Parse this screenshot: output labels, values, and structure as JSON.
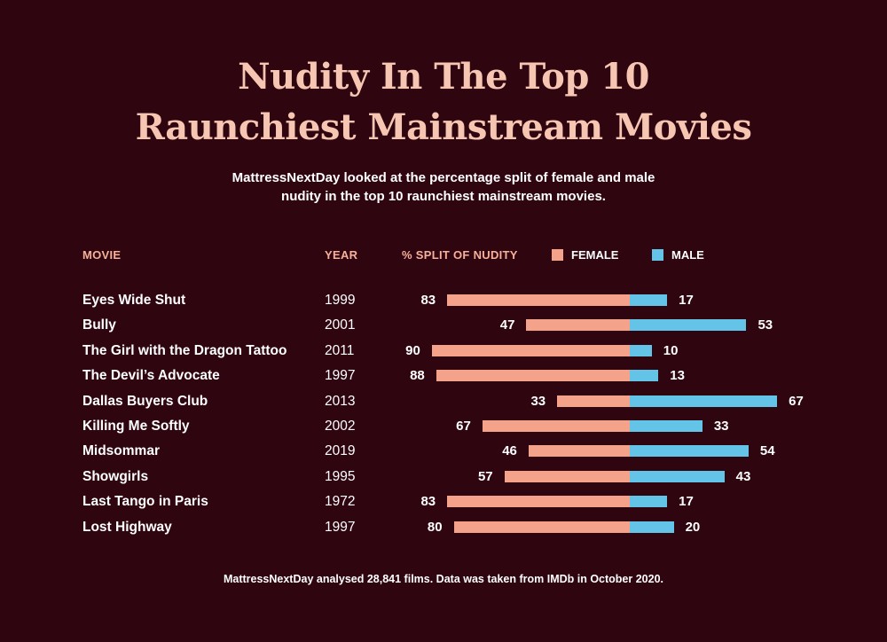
{
  "title": {
    "line1": "Nudity In The Top 10",
    "line2": "Raunchiest Mainstream Movies"
  },
  "subtitle": {
    "line1": "MattressNextDay looked at the percentage split of female and male",
    "line2": "nudity in the top 10 raunchiest mainstream movies."
  },
  "headers": {
    "movie": "MOVIE",
    "year": "YEAR",
    "split": "% SPLIT OF NUDITY"
  },
  "legend": {
    "female": "FEMALE",
    "male": "MALE"
  },
  "colors": {
    "background": "#2f0510",
    "title": "#f7c6b3",
    "header": "#f7b19a",
    "female": "#f4a38a",
    "male": "#63c4e8"
  },
  "footer": "MattressNextDay analysed 28,841 films. Data was taken from IMDb in October 2020.",
  "chart_data": {
    "type": "bar",
    "orientation": "horizontal-diverging",
    "categories": [
      "Eyes Wide Shut",
      "Bully",
      "The Girl with the Dragon Tattoo",
      "The Devil’s Advocate",
      "Dallas Buyers Club",
      "Killing Me Softly",
      "Midsommar",
      "Showgirls",
      "Last Tango in Paris",
      "Lost Highway"
    ],
    "years": [
      "1999",
      "2001",
      "2011",
      "1997",
      "2013",
      "2002",
      "2019",
      "1995",
      "1972",
      "1997"
    ],
    "series": [
      {
        "name": "FEMALE",
        "values": [
          83,
          47,
          90,
          88,
          33,
          67,
          46,
          57,
          83,
          80
        ]
      },
      {
        "name": "MALE",
        "values": [
          17,
          53,
          10,
          13,
          67,
          33,
          54,
          43,
          17,
          20
        ]
      }
    ],
    "xlim": [
      0,
      100
    ],
    "legend": "top-right"
  }
}
